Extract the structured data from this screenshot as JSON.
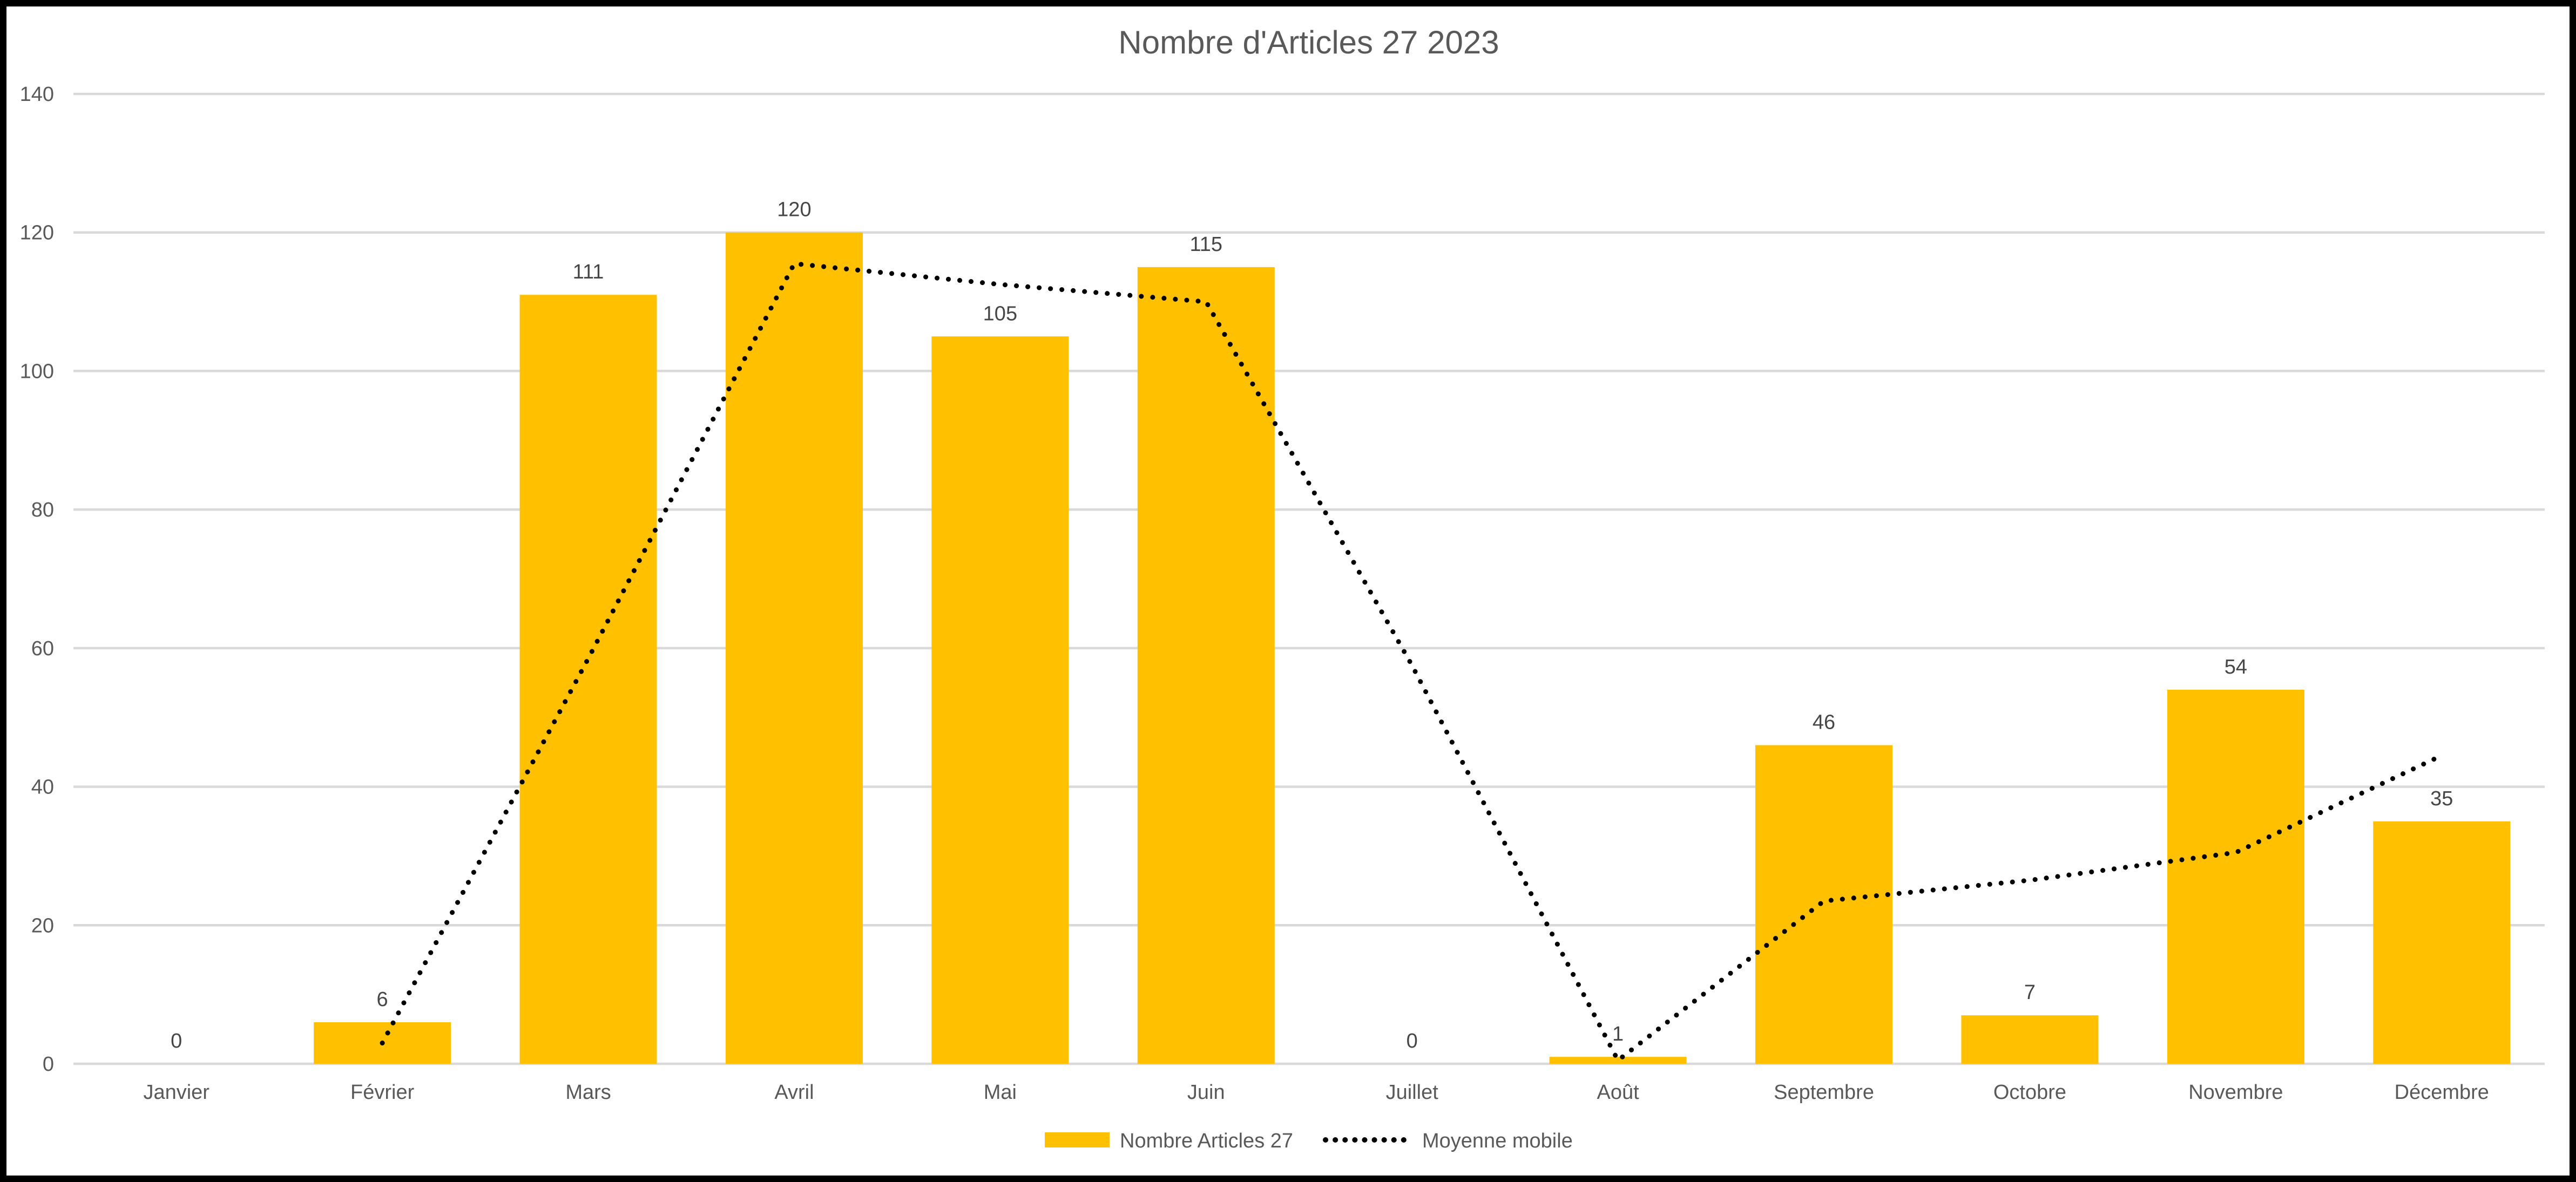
{
  "chart_data": {
    "type": "bar",
    "title": "Nombre d'Articles 27 2023",
    "categories": [
      "Janvier",
      "Février",
      "Mars",
      "Avril",
      "Mai",
      "Juin",
      "Juillet",
      "Août",
      "Septembre",
      "Octobre",
      "Novembre",
      "Décembre"
    ],
    "series": [
      {
        "name": "Nombre Articles 27",
        "type": "bar",
        "color": "#FFC000",
        "values": [
          0,
          6,
          111,
          120,
          105,
          115,
          0,
          1,
          46,
          7,
          54,
          35
        ],
        "data_labels_shown": true
      },
      {
        "name": "Moyenne mobile",
        "type": "line",
        "line_style": "dotted",
        "color": "#000000",
        "values": [
          null,
          3,
          58.5,
          115.5,
          112.5,
          110,
          57.5,
          0.5,
          23.5,
          26.5,
          30.5,
          44.5
        ]
      }
    ],
    "y_axis": {
      "min": 0,
      "max": 140,
      "step": 20,
      "tick_labels": [
        "0",
        "20",
        "40",
        "60",
        "80",
        "100",
        "120",
        "140"
      ]
    },
    "x_axis": {
      "tick_labels": [
        "Janvier",
        "Février",
        "Mars",
        "Avril",
        "Mai",
        "Juin",
        "Juillet",
        "Août",
        "Septembre",
        "Octobre",
        "Novembre",
        "Décembre"
      ]
    },
    "grid": true,
    "legend_position": "bottom",
    "legend": [
      {
        "label": "Nombre Articles 27",
        "swatch": "bar"
      },
      {
        "label": "Moyenne mobile",
        "swatch": "dotted-line"
      }
    ],
    "colors": {
      "bar": "#FFC000",
      "trendline": "#000000",
      "grid_line": "#D9D9D9",
      "axis_text": "#595959",
      "title_text": "#595959",
      "data_label_text": "#464646",
      "legend_text": "#595959",
      "background": "#FFFFFF",
      "frame_border": "#000000"
    }
  }
}
